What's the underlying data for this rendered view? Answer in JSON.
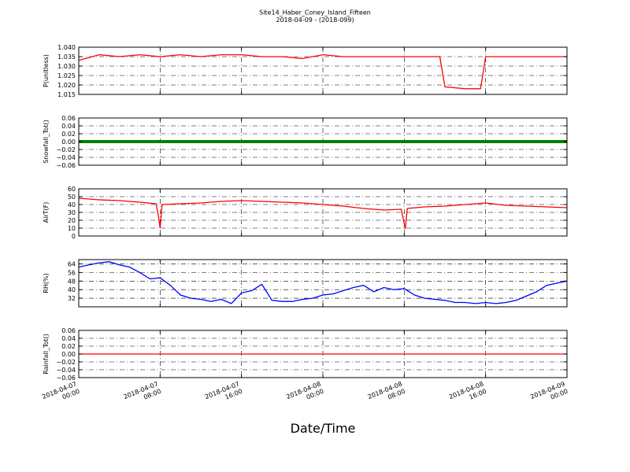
{
  "figure": {
    "title": "Site14_Haber_Coney_Island_Fifteen",
    "subtitle": "2018-04-09 - (2018-099)",
    "xlabel": "Date/Time"
  },
  "chart_data": [
    {
      "type": "line",
      "ylabel": "P(unitless)",
      "ylim": [
        1.015,
        1.04
      ],
      "yticks": [
        "1.040",
        "1.035",
        "1.030",
        "1.025",
        "1.020",
        "1.015"
      ],
      "ytick_values": [
        1.04,
        1.035,
        1.03,
        1.025,
        1.02,
        1.015
      ],
      "color": "#ff0000",
      "grid": true,
      "x": [
        0,
        2,
        4,
        6,
        8,
        10,
        12,
        14,
        16,
        18,
        20,
        22,
        24,
        26,
        28,
        30,
        32,
        34,
        35.5,
        36,
        38,
        39.5,
        40,
        42,
        44,
        46,
        48
      ],
      "y": [
        1.033,
        1.036,
        1.035,
        1.036,
        1.035,
        1.036,
        1.035,
        1.036,
        1.036,
        1.035,
        1.035,
        1.034,
        1.036,
        1.035,
        1.035,
        1.035,
        1.035,
        1.035,
        1.035,
        1.019,
        1.018,
        1.018,
        1.035,
        1.035,
        1.035,
        1.035,
        1.035
      ]
    },
    {
      "type": "line",
      "ylabel": "Snowfall_Tot()",
      "ylim": [
        -0.06,
        0.06
      ],
      "yticks": [
        "0.06",
        "0.04",
        "0.02",
        "0.00",
        "−0.02",
        "−0.04",
        "−0.06"
      ],
      "ytick_values": [
        0.06,
        0.04,
        0.02,
        0.0,
        -0.02,
        -0.04,
        -0.06
      ],
      "color": "#008000",
      "grid": true,
      "x": [
        0,
        48
      ],
      "y": [
        0,
        0
      ]
    },
    {
      "type": "line",
      "ylabel": "AirT(F)",
      "ylim": [
        0,
        60
      ],
      "yticks": [
        "60",
        "50",
        "40",
        "30",
        "20",
        "10",
        "0"
      ],
      "ytick_values": [
        60,
        50,
        40,
        30,
        20,
        10,
        0
      ],
      "color": "#ff0000",
      "grid": true,
      "x": [
        0,
        2,
        4,
        6,
        7.6,
        7.8,
        8.0,
        8.2,
        10,
        12,
        14,
        16,
        18,
        20,
        22,
        24,
        26,
        28,
        30,
        31.7,
        31.9,
        32.1,
        32.3,
        34,
        36,
        38,
        40,
        42,
        44,
        46,
        48
      ],
      "y": [
        48,
        46,
        45,
        43,
        41,
        28,
        10,
        40,
        41,
        42,
        44,
        45,
        44,
        43,
        42,
        40,
        38,
        35,
        33,
        34,
        22,
        9,
        35,
        37,
        38,
        40,
        42,
        39,
        38,
        37,
        36
      ]
    },
    {
      "type": "line",
      "ylabel": "RH(%)",
      "ylim": [
        24,
        68
      ],
      "yticks": [
        "64",
        "56",
        "48",
        "40",
        "32"
      ],
      "ytick_values": [
        64,
        56,
        48,
        40,
        32
      ],
      "color": "#0000ff",
      "grid": true,
      "x": [
        0,
        1,
        2,
        3,
        4,
        5,
        6,
        7,
        8,
        9,
        10,
        11,
        12,
        13,
        14,
        15,
        16,
        17,
        18,
        19,
        20,
        21,
        22,
        23,
        24,
        25,
        26,
        27,
        28,
        29,
        30,
        31,
        32,
        33,
        34,
        35,
        36,
        37,
        38,
        39,
        40,
        41,
        42,
        43,
        44,
        45,
        46,
        47,
        48
      ],
      "y": [
        61,
        63,
        65,
        66,
        63,
        61,
        56,
        50,
        51,
        44,
        35,
        32,
        31,
        29,
        31,
        27,
        37,
        39,
        45,
        30,
        29,
        29,
        31,
        32,
        35,
        36,
        39,
        42,
        44,
        38,
        42,
        40,
        41,
        35,
        32,
        31,
        30,
        28,
        28,
        27,
        28,
        27,
        28,
        30,
        34,
        38,
        44,
        46,
        48
      ]
    },
    {
      "type": "line",
      "ylabel": "Rainfall_Tot()",
      "ylim": [
        -0.06,
        0.06
      ],
      "yticks": [
        "0.06",
        "0.04",
        "0.02",
        "0.00",
        "−0.02",
        "−0.04",
        "−0.06"
      ],
      "ytick_values": [
        0.06,
        0.04,
        0.02,
        0.0,
        -0.02,
        -0.04,
        -0.06
      ],
      "color": "#ff0000",
      "grid": true,
      "x": [
        0,
        48
      ],
      "y": [
        0,
        0
      ]
    }
  ],
  "xaxis": {
    "range_hours": [
      0,
      48
    ],
    "tick_hours": [
      0,
      8,
      16,
      24,
      32,
      40,
      48
    ],
    "tick_labels": [
      [
        "2018-04-07",
        "00:00"
      ],
      [
        "2018-04-07",
        "08:00"
      ],
      [
        "2018-04-07",
        "16:00"
      ],
      [
        "2018-04-08",
        "00:00"
      ],
      [
        "2018-04-08",
        "08:00"
      ],
      [
        "2018-04-08",
        "16:00"
      ],
      [
        "2018-04-09",
        "00:00"
      ]
    ]
  }
}
